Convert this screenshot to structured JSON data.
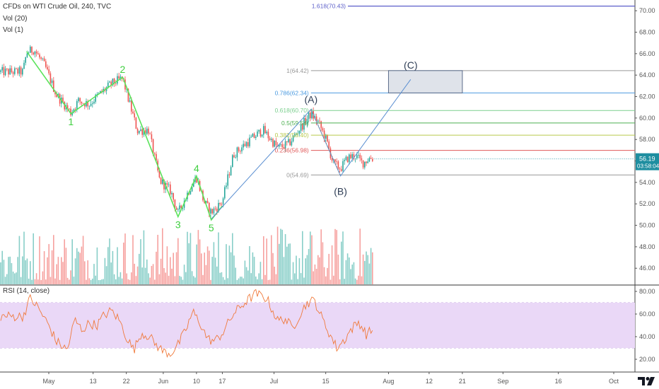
{
  "legend": {
    "title": "CFDs on WTI Crude Oil, 240, TVC",
    "vol20": "Vol (20)",
    "vol1": "Vol (1)",
    "rsi": "RSI (14, close)"
  },
  "colors": {
    "up": "#26a69a",
    "down": "#ef5350",
    "wave": "#5be35b",
    "wave_label": "#3fcf3f",
    "abc": "#5b8fd1",
    "rsi_line": "#f07a3c",
    "rsi_band": "#ead8f7",
    "price_badge": "#1e8ea0"
  },
  "price_badge": {
    "price": "56.19",
    "countdown": "03:58:04"
  },
  "wave_labels": [
    {
      "text": "1",
      "x": "May 7",
      "y": 60.4,
      "pos": "below"
    },
    {
      "text": "2",
      "x": "May 21",
      "y": 63.8,
      "pos": "above"
    },
    {
      "text": "3",
      "x": "Jun 5",
      "y": 50.8,
      "pos": "below"
    },
    {
      "text": "4",
      "x": "Jun 10",
      "y": 54.6,
      "pos": "above"
    },
    {
      "text": "5",
      "x": "Jun 14",
      "y": 50.5,
      "pos": "below"
    }
  ],
  "abc_labels": [
    {
      "text": "(A)",
      "x": "Jul 11",
      "y": 61.0
    },
    {
      "text": "(B)",
      "x": "Jul 19",
      "y": 54.3
    },
    {
      "text": "(C)",
      "x": "Aug 7",
      "y": 64.2
    }
  ],
  "fib_levels": [
    {
      "label": "1.618(70.43)",
      "value": 70.43,
      "color": "#5c5fc9"
    },
    {
      "label": "1(64.42)",
      "value": 64.42,
      "color": "#999999"
    },
    {
      "label": "0.786(62.34)",
      "value": 62.34,
      "color": "#4c9be0"
    },
    {
      "label": "0.618(60.70)",
      "value": 60.7,
      "color": "#7bcf8e"
    },
    {
      "label": "0.5(59.54)",
      "value": 59.54,
      "color": "#4caf50"
    },
    {
      "label": "0.382(58.40)",
      "value": 58.4,
      "color": "#b8c94c"
    },
    {
      "label": "0.236(56.98)",
      "value": 56.98,
      "color": "#e05a5a"
    },
    {
      "label": "0(54.69)",
      "value": 54.69,
      "color": "#999999"
    }
  ],
  "chart_data": {
    "type": "candlestick",
    "title": "CFDs on WTI Crude Oil, 240, TVC",
    "x_tick_labels": [
      "May",
      "13",
      "22",
      "Jun",
      "10",
      "17",
      "Jul",
      "15",
      "Aug",
      "12",
      "21",
      "Sep",
      "16",
      "Oct"
    ],
    "price_axis": {
      "ylim": [
        44.5,
        71.0
      ],
      "ticks": [
        "46.00",
        "48.00",
        "50.00",
        "52.00",
        "54.00",
        "56.00",
        "58.00",
        "60.00",
        "62.00",
        "64.00",
        "66.00",
        "68.00",
        "70.00"
      ]
    },
    "rsi_axis": {
      "ylim": [
        10,
        85
      ],
      "ticks": [
        "20.00",
        "40.00",
        "60.00",
        "80.00"
      ],
      "band": [
        30,
        70
      ]
    },
    "price_path": [
      [
        "Apr 24",
        64.3
      ],
      [
        "Apr 25",
        66.1
      ],
      [
        "Apr 27",
        66.4
      ],
      [
        "Apr 30",
        64.8
      ],
      [
        "May 3",
        62.2
      ],
      [
        "May 7",
        60.5
      ],
      [
        "May 9",
        61.6
      ],
      [
        "May 12",
        61.3
      ],
      [
        "May 14",
        62.0
      ],
      [
        "May 16",
        62.6
      ],
      [
        "May 18",
        63.2
      ],
      [
        "May 21",
        63.7
      ],
      [
        "May 23",
        61.2
      ],
      [
        "May 25",
        58.8
      ],
      [
        "May 28",
        58.9
      ],
      [
        "May 31",
        54.2
      ],
      [
        "Jun 3",
        53.2
      ],
      [
        "Jun 5",
        51.1
      ],
      [
        "Jun 8",
        53.3
      ],
      [
        "Jun 10",
        54.5
      ],
      [
        "Jun 12",
        52.2
      ],
      [
        "Jun 14",
        51.2
      ],
      [
        "Jun 17",
        52.2
      ],
      [
        "Jun 20",
        56.6
      ],
      [
        "Jun 24",
        57.8
      ],
      [
        "Jun 28",
        58.9
      ],
      [
        "Jul 2",
        57.2
      ],
      [
        "Jul 5",
        57.6
      ],
      [
        "Jul 9",
        59.5
      ],
      [
        "Jul 11",
        60.4
      ],
      [
        "Jul 13",
        59.6
      ],
      [
        "Jul 15",
        58.1
      ],
      [
        "Jul 17",
        55.8
      ],
      [
        "Jul 19",
        55.3
      ],
      [
        "Jul 21",
        56.3
      ],
      [
        "Jul 23",
        56.5
      ],
      [
        "Jul 25",
        55.8
      ],
      [
        "Jul 27",
        56.3
      ],
      [
        "Jul 28",
        56.2
      ]
    ],
    "wave_path": [
      [
        "Apr 25",
        66.2
      ],
      [
        "May 7",
        60.4
      ],
      [
        "May 21",
        63.8
      ],
      [
        "Jun 5",
        50.8
      ],
      [
        "Jun 10",
        54.6
      ],
      [
        "Jun 14",
        50.5
      ],
      [
        "Jun 17",
        51.8
      ]
    ],
    "abc_path": [
      [
        "Jun 14",
        50.6
      ],
      [
        "Jul 11",
        60.8
      ],
      [
        "Jul 19",
        54.6
      ],
      [
        "Aug 7",
        63.6
      ]
    ],
    "target_box": {
      "x0": "Aug 1",
      "x1": "Aug 21",
      "y0": 62.34,
      "y1": 64.42
    },
    "rsi_path": [
      [
        "Apr 24",
        58
      ],
      [
        "Apr 26",
        74
      ],
      [
        "Apr 28",
        66
      ],
      [
        "May 1",
        50
      ],
      [
        "May 3",
        36
      ],
      [
        "May 6",
        28
      ],
      [
        "May 8",
        55
      ],
      [
        "May 10",
        46
      ],
      [
        "May 12",
        52
      ],
      [
        "May 14",
        50
      ],
      [
        "May 16",
        59
      ],
      [
        "May 18",
        63
      ],
      [
        "May 20",
        55
      ],
      [
        "May 22",
        40
      ],
      [
        "May 24",
        28
      ],
      [
        "May 26",
        43
      ],
      [
        "May 28",
        41
      ],
      [
        "May 30",
        33
      ],
      [
        "Jun 1",
        27
      ],
      [
        "Jun 3",
        25
      ],
      [
        "Jun 5",
        33
      ],
      [
        "Jun 7",
        45
      ],
      [
        "Jun 9",
        62
      ],
      [
        "Jun 11",
        52
      ],
      [
        "Jun 13",
        38
      ],
      [
        "Jun 15",
        36
      ],
      [
        "Jun 17",
        43
      ],
      [
        "Jun 20",
        60
      ],
      [
        "Jun 23",
        70
      ],
      [
        "Jun 26",
        78
      ],
      [
        "Jun 29",
        74
      ],
      [
        "Jul 2",
        54
      ],
      [
        "Jul 4",
        56
      ],
      [
        "Jul 6",
        47
      ],
      [
        "Jul 8",
        60
      ],
      [
        "Jul 10",
        70
      ],
      [
        "Jul 12",
        72
      ],
      [
        "Jul 14",
        56
      ],
      [
        "Jul 16",
        43
      ],
      [
        "Jul 18",
        30
      ],
      [
        "Jul 20",
        37
      ],
      [
        "Jul 22",
        47
      ],
      [
        "Jul 24",
        53
      ],
      [
        "Jul 26",
        42
      ],
      [
        "Jul 28",
        47
      ]
    ],
    "volume_max_fraction": 0.95
  }
}
